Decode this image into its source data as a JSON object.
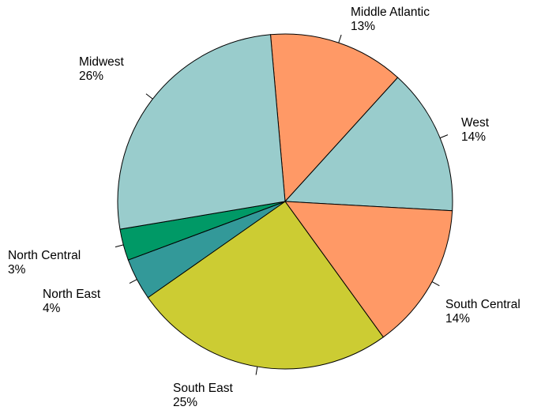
{
  "chart_data": {
    "type": "pie",
    "slices": [
      {
        "label": "Middle Atlantic",
        "value": 13,
        "pct_label": "13%",
        "color": "#FF9966"
      },
      {
        "label": "West",
        "value": 14,
        "pct_label": "14%",
        "color": "#99CCCC"
      },
      {
        "label": "South Central",
        "value": 14,
        "pct_label": "14%",
        "color": "#FF9966"
      },
      {
        "label": "South East",
        "value": 25,
        "pct_label": "25%",
        "color": "#CCCC33"
      },
      {
        "label": "North East",
        "value": 4,
        "pct_label": "4%",
        "color": "#339999"
      },
      {
        "label": "North Central",
        "value": 3,
        "pct_label": "3%",
        "color": "#009966"
      },
      {
        "label": "Midwest",
        "value": 26,
        "pct_label": "26%",
        "color": "#99CCCC"
      }
    ]
  }
}
